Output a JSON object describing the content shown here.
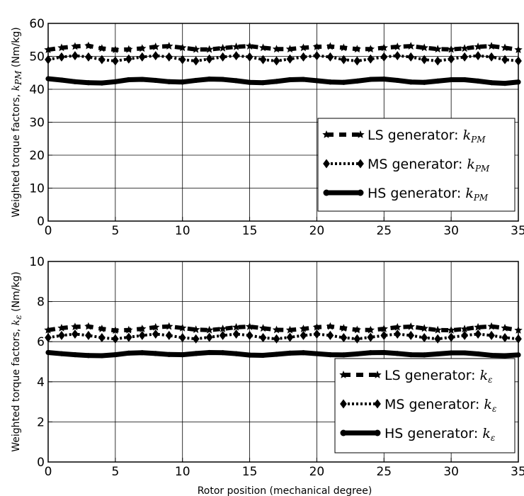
{
  "chart_data": [
    {
      "type": "line",
      "ylabel_prefix": "Weighted torque factors, ",
      "ylabel_symbol": "k",
      "ylabel_subscript": "PM",
      "ylabel_unit": " (Nm/kg)",
      "xlim": [
        0,
        35
      ],
      "ylim": [
        0,
        60
      ],
      "xticks": [
        0,
        5,
        10,
        15,
        20,
        25,
        30,
        35
      ],
      "yticks": [
        0,
        10,
        20,
        30,
        40,
        50,
        60
      ],
      "grid": true,
      "legend_position": "lower-right",
      "x": [
        0,
        1,
        2,
        3,
        4,
        5,
        6,
        7,
        8,
        9,
        10,
        11,
        12,
        13,
        14,
        15,
        16,
        17,
        18,
        19,
        20,
        21,
        22,
        23,
        24,
        25,
        26,
        27,
        28,
        29,
        30,
        31,
        32,
        33,
        34,
        35
      ],
      "series": [
        {
          "name_prefix": "LS generator: ",
          "name_symbol": "k",
          "name_subscript": "PM",
          "style": "dashed-star",
          "values": [
            52.0,
            52.6,
            53.0,
            53.2,
            52.4,
            52.0,
            52.1,
            52.4,
            52.9,
            53.1,
            52.6,
            52.1,
            52.1,
            52.5,
            52.9,
            53.1,
            52.6,
            52.2,
            52.2,
            52.6,
            52.9,
            53.0,
            52.6,
            52.2,
            52.2,
            52.6,
            52.9,
            53.1,
            52.6,
            52.2,
            52.1,
            52.4,
            52.9,
            53.1,
            52.6,
            52.0
          ]
        },
        {
          "name_prefix": "MS generator: ",
          "name_symbol": "k",
          "name_subscript": "PM",
          "style": "dotted-diamond",
          "values": [
            49.0,
            49.8,
            50.2,
            49.8,
            49.0,
            48.6,
            49.2,
            49.8,
            50.2,
            49.8,
            49.0,
            48.6,
            49.2,
            49.8,
            50.2,
            49.8,
            49.0,
            48.6,
            49.2,
            49.8,
            50.2,
            49.8,
            49.0,
            48.6,
            49.2,
            49.8,
            50.2,
            49.8,
            49.0,
            48.6,
            49.2,
            49.8,
            50.2,
            49.8,
            49.0,
            48.6
          ]
        },
        {
          "name_prefix": "HS generator: ",
          "name_symbol": "k",
          "name_subscript": "PM",
          "style": "thick-solid",
          "values": [
            43.2,
            42.8,
            42.3,
            42.0,
            41.9,
            42.3,
            42.9,
            43.0,
            42.7,
            42.3,
            42.2,
            42.7,
            43.1,
            43.0,
            42.6,
            42.1,
            42.0,
            42.4,
            42.9,
            43.0,
            42.6,
            42.2,
            42.1,
            42.5,
            43.0,
            43.1,
            42.7,
            42.2,
            42.1,
            42.5,
            42.9,
            42.9,
            42.5,
            42.0,
            41.8,
            42.2
          ]
        }
      ]
    },
    {
      "type": "line",
      "ylabel_prefix": "Weighted torque factors, ",
      "ylabel_symbol": "k",
      "ylabel_subscript": "ε",
      "ylabel_unit": " (Nm/kg)",
      "xlabel": "Rotor position (mechanical degree)",
      "xlim": [
        0,
        35
      ],
      "ylim": [
        0,
        10
      ],
      "xticks": [
        0,
        5,
        10,
        15,
        20,
        25,
        30,
        35
      ],
      "yticks": [
        0,
        2,
        4,
        6,
        8,
        10
      ],
      "grid": true,
      "legend_position": "lower-right",
      "x": [
        0,
        1,
        2,
        3,
        4,
        5,
        6,
        7,
        8,
        9,
        10,
        11,
        12,
        13,
        14,
        15,
        16,
        17,
        18,
        19,
        20,
        21,
        22,
        23,
        24,
        25,
        26,
        27,
        28,
        29,
        30,
        31,
        32,
        33,
        34,
        35
      ],
      "series": [
        {
          "name_prefix": "LS generator: ",
          "name_symbol": "k",
          "name_subscript": "ε",
          "style": "dashed-star",
          "values": [
            6.58,
            6.68,
            6.74,
            6.76,
            6.64,
            6.56,
            6.58,
            6.64,
            6.72,
            6.76,
            6.68,
            6.6,
            6.58,
            6.64,
            6.72,
            6.75,
            6.67,
            6.59,
            6.58,
            6.64,
            6.72,
            6.76,
            6.67,
            6.59,
            6.58,
            6.64,
            6.72,
            6.75,
            6.66,
            6.58,
            6.57,
            6.63,
            6.72,
            6.76,
            6.68,
            6.57
          ]
        },
        {
          "name_prefix": "MS generator: ",
          "name_symbol": "k",
          "name_subscript": "ε",
          "style": "dotted-diamond",
          "values": [
            6.2,
            6.31,
            6.38,
            6.31,
            6.2,
            6.14,
            6.22,
            6.31,
            6.38,
            6.31,
            6.2,
            6.14,
            6.22,
            6.31,
            6.38,
            6.31,
            6.2,
            6.14,
            6.22,
            6.31,
            6.38,
            6.31,
            6.2,
            6.14,
            6.22,
            6.31,
            6.38,
            6.31,
            6.2,
            6.14,
            6.22,
            6.31,
            6.38,
            6.31,
            6.2,
            6.14
          ]
        },
        {
          "name_prefix": "HS generator: ",
          "name_symbol": "k",
          "name_subscript": "ε",
          "style": "thick-solid",
          "values": [
            5.46,
            5.4,
            5.35,
            5.31,
            5.3,
            5.35,
            5.43,
            5.45,
            5.41,
            5.36,
            5.35,
            5.41,
            5.46,
            5.45,
            5.4,
            5.33,
            5.32,
            5.37,
            5.43,
            5.45,
            5.4,
            5.35,
            5.34,
            5.39,
            5.45,
            5.46,
            5.41,
            5.35,
            5.34,
            5.39,
            5.44,
            5.44,
            5.39,
            5.32,
            5.3,
            5.34
          ]
        }
      ]
    }
  ]
}
